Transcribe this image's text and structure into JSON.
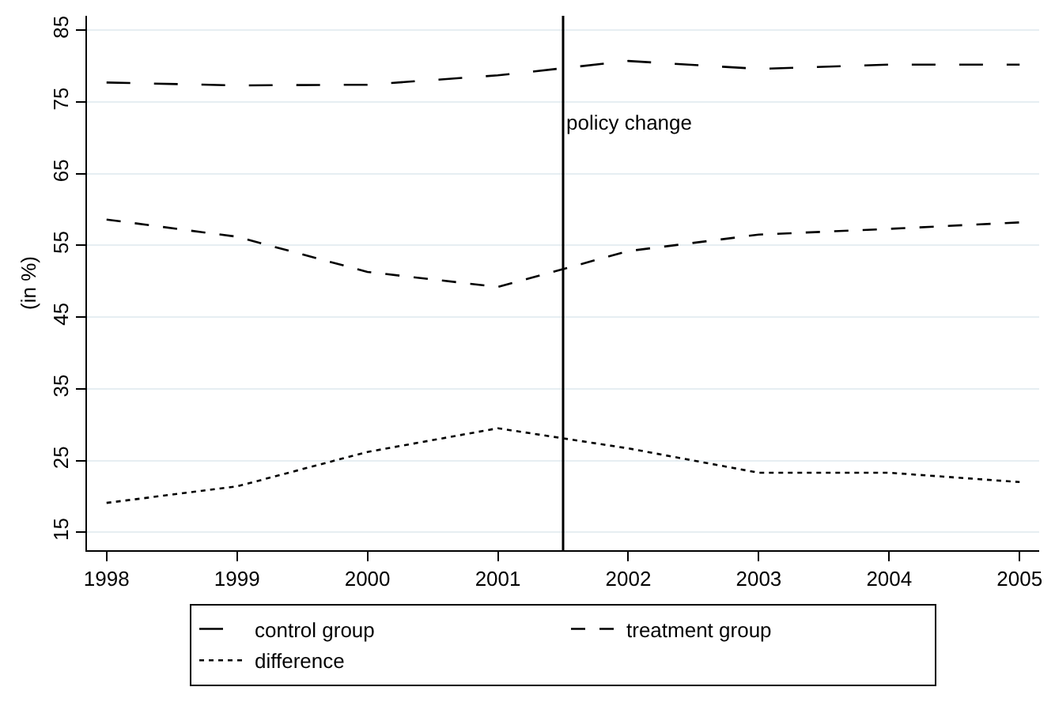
{
  "chart_data": {
    "type": "line",
    "ylabel": "(in %)",
    "x": [
      1998,
      1999,
      2000,
      2001,
      2002,
      2003,
      2004,
      2005
    ],
    "series": [
      {
        "name": "control group",
        "color": "#000000",
        "line_style": "longdash",
        "values": [
          77.7,
          77.3,
          77.4,
          78.7,
          80.7,
          79.6,
          80.2,
          80.2
        ]
      },
      {
        "name": "treatment group",
        "color": "#000000",
        "line_style": "dashed",
        "values": [
          58.6,
          56.2,
          51.3,
          49.2,
          54.2,
          56.5,
          57.3,
          58.2
        ]
      },
      {
        "name": "difference",
        "color": "#000000",
        "line_style": "dotted",
        "values": [
          19.1,
          21.4,
          26.2,
          29.5,
          26.7,
          23.3,
          23.3,
          22.0
        ]
      }
    ],
    "ref_lines": [
      {
        "axis": "x",
        "value": 2001.5,
        "label": "policy change",
        "color": "#000000"
      }
    ],
    "xlim": [
      1997.85,
      2005.15
    ],
    "xticks": [
      1998,
      1999,
      2000,
      2001,
      2002,
      2003,
      2004,
      2005
    ],
    "ylim": [
      12.5,
      87
    ],
    "yticks": [
      15,
      25,
      35,
      45,
      55,
      65,
      75,
      85
    ],
    "grid": "y",
    "legend": "bottom",
    "marker": "none"
  }
}
